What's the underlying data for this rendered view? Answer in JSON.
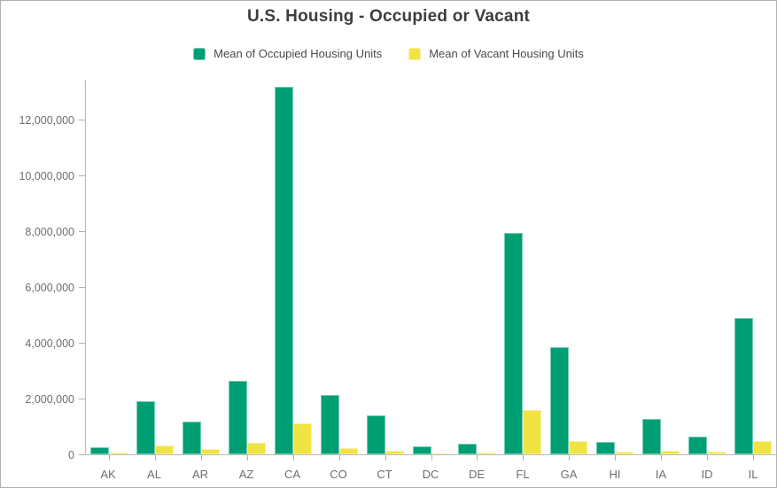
{
  "header": {
    "title": "U.S. Housing - Occupied or Vacant"
  },
  "legend": {
    "items": [
      {
        "label": "Mean of Occupied Housing Units",
        "color": "#009E73",
        "edge_color": "#76CDB3"
      },
      {
        "label": "Mean of Vacant Housing Units",
        "color": "#F0E442",
        "edge_color": "#F7F0A3"
      }
    ]
  },
  "axes": {
    "text_color": "#6E6E6E",
    "line_color": "#B9B9B9"
  },
  "chart_data": {
    "type": "bar",
    "title": "U.S. Housing - Occupied or Vacant",
    "xlabel": "",
    "ylabel": "",
    "grid": false,
    "legend_position": "top",
    "categories": [
      "AK",
      "AL",
      "AR",
      "AZ",
      "CA",
      "CO",
      "CT",
      "DC",
      "DE",
      "FL",
      "GA",
      "HI",
      "IA",
      "ID",
      "IL"
    ],
    "series": [
      {
        "name": "Mean of Occupied Housing Units",
        "color": "#009E73",
        "edge_color": "#76CDB3",
        "values": [
          250000,
          1900000,
          1170000,
          2650000,
          13200000,
          2130000,
          1400000,
          290000,
          370000,
          7950000,
          3850000,
          460000,
          1270000,
          650000,
          4900000
        ]
      },
      {
        "name": "Mean of Vacant Housing Units",
        "color": "#F0E442",
        "edge_color": "#F7F0A3",
        "values": [
          60000,
          330000,
          200000,
          400000,
          1100000,
          230000,
          130000,
          30000,
          70000,
          1600000,
          490000,
          90000,
          140000,
          100000,
          480000
        ]
      }
    ],
    "ylim": [
      0,
      13450000
    ],
    "y_ticks": [
      0,
      2000000,
      4000000,
      6000000,
      8000000,
      10000000,
      12000000
    ],
    "y_tick_labels": [
      "0",
      "2,000,000",
      "4,000,000",
      "6,000,000",
      "8,000,000",
      "10,000,000",
      "12,000,000"
    ]
  }
}
